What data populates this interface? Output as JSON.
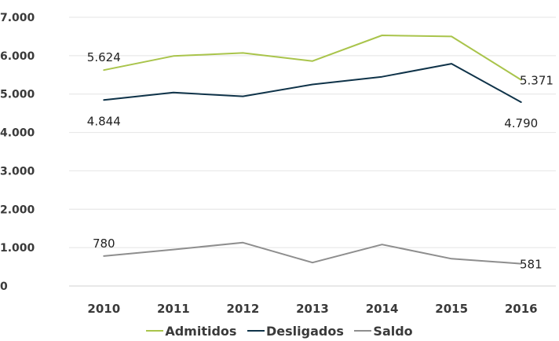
{
  "chart_data": {
    "type": "line",
    "categories": [
      "2010",
      "2011",
      "2012",
      "2013",
      "2014",
      "2015",
      "2016"
    ],
    "yticks": [
      "0",
      "1.000",
      "2.000",
      "3.000",
      "4.000",
      "5.000",
      "6.000",
      "7.000"
    ],
    "ylim": [
      0,
      7000
    ],
    "grid": true,
    "legend_position": "bottom",
    "series": [
      {
        "name": "Admitidos",
        "color": "#a9c44b",
        "values": [
          5624,
          5990,
          6070,
          5860,
          6530,
          6500,
          5371
        ]
      },
      {
        "name": "Desligados",
        "color": "#0f3349",
        "values": [
          4844,
          5040,
          4940,
          5250,
          5450,
          5790,
          4790
        ]
      },
      {
        "name": "Saldo",
        "color": "#8e8e8e",
        "values": [
          780,
          950,
          1130,
          610,
          1080,
          710,
          581
        ]
      }
    ],
    "data_labels": [
      {
        "series": 0,
        "index": 0,
        "text": "5.624",
        "pos": "above"
      },
      {
        "series": 0,
        "index": 6,
        "text": "5.371",
        "pos": "right"
      },
      {
        "series": 1,
        "index": 0,
        "text": "4.844",
        "pos": "below"
      },
      {
        "series": 1,
        "index": 6,
        "text": "4.790",
        "pos": "below"
      },
      {
        "series": 2,
        "index": 0,
        "text": "780",
        "pos": "above"
      },
      {
        "series": 2,
        "index": 6,
        "text": "581",
        "pos": "right"
      }
    ]
  }
}
